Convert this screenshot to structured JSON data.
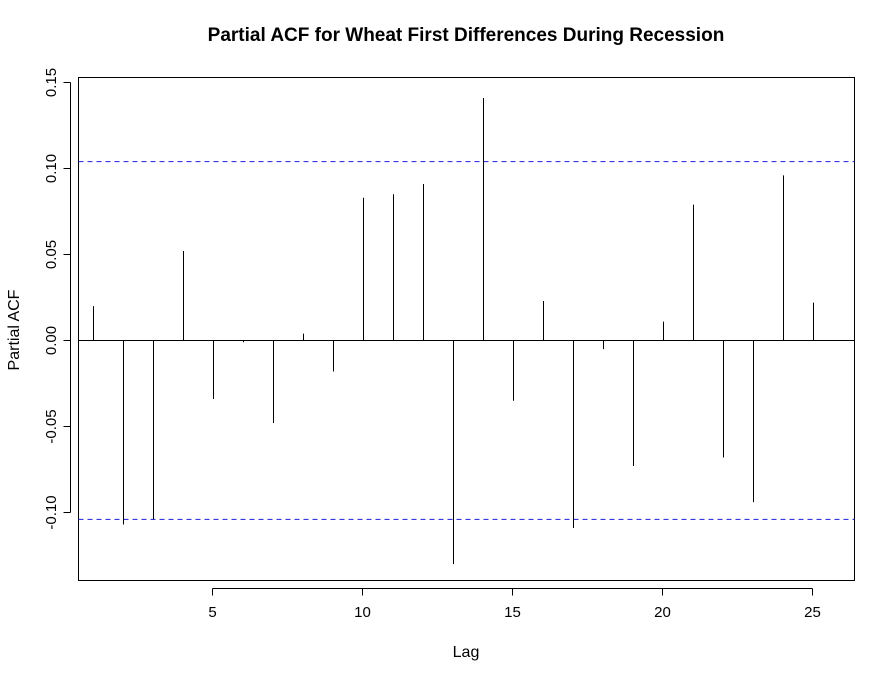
{
  "chart_data": {
    "type": "bar",
    "title": "Partial ACF for Wheat First Differences During Recession",
    "xlabel": "Lag",
    "ylabel": "Partial ACF",
    "xlim": [
      0.5,
      26
    ],
    "ylim": [
      -0.14,
      0.15
    ],
    "x_ticks": [
      5,
      10,
      15,
      20,
      25
    ],
    "y_ticks": [
      -0.1,
      -0.05,
      0.0,
      0.05,
      0.1,
      0.15
    ],
    "y_tick_labels": [
      "-0.10",
      "-0.05",
      "0.00",
      "0.05",
      "0.10",
      "0.15"
    ],
    "confidence_bounds": [
      0.104,
      -0.104
    ],
    "confidence_color": "#1f1fe0",
    "lags": [
      1,
      2,
      3,
      4,
      5,
      6,
      7,
      8,
      9,
      10,
      11,
      12,
      13,
      14,
      15,
      16,
      17,
      18,
      19,
      20,
      21,
      22,
      23,
      24,
      25
    ],
    "values": [
      0.02,
      -0.107,
      -0.104,
      0.052,
      -0.034,
      -0.001,
      -0.048,
      0.004,
      -0.018,
      0.083,
      0.085,
      0.091,
      -0.13,
      0.141,
      -0.035,
      0.023,
      -0.109,
      -0.005,
      -0.073,
      0.011,
      0.079,
      -0.068,
      -0.094,
      0.096,
      0.022
    ],
    "grid": false,
    "legend": "none"
  }
}
